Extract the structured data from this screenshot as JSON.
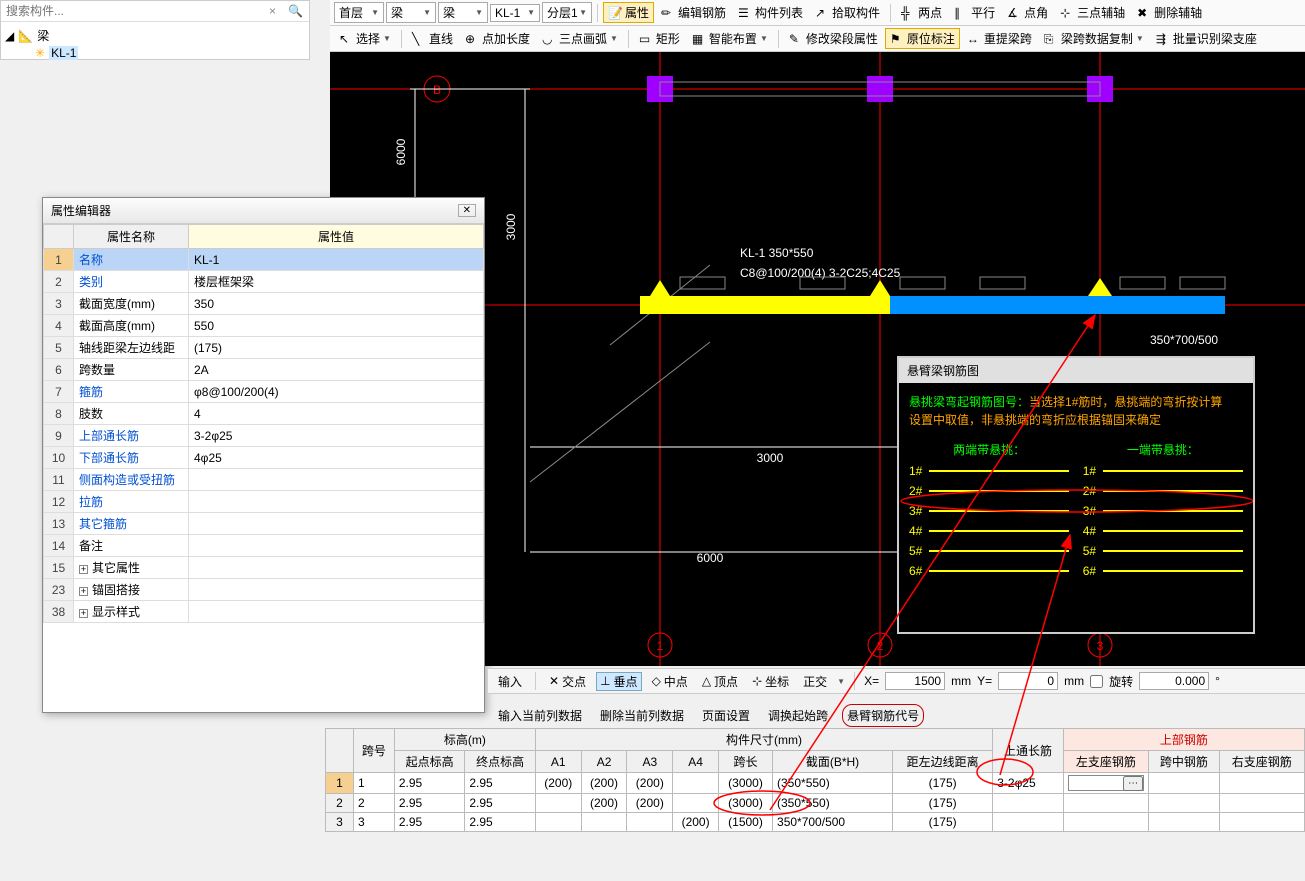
{
  "search": {
    "placeholder": "搜索构件..."
  },
  "tree": {
    "root": "梁",
    "leaf": "KL-1"
  },
  "topDropdowns": {
    "d1": "首层",
    "d2": "梁",
    "d3": "梁",
    "d4": "KL-1",
    "d5": "分层1"
  },
  "toolbar1": {
    "attr": "属性",
    "editRebar": "编辑钢筋",
    "compList": "构件列表",
    "pick": "拾取构件",
    "grid": "两点",
    "parallel": "平行",
    "pointAngle": "点角",
    "threePoint": "三点辅轴",
    "delAux": "删除辅轴"
  },
  "toolbar2": {
    "select": "选择",
    "line": "直线",
    "addLen": "点加长度",
    "threeArc": "三点画弧",
    "rect": "矩形",
    "smart": "智能布置",
    "editSeg": "修改梁段属性",
    "inplace": "原位标注",
    "respan": "重提梁跨",
    "copySpan": "梁跨数据复制",
    "batch": "批量识别梁支座"
  },
  "propEditor": {
    "title": "属性编辑器",
    "headers": {
      "name": "属性名称",
      "value": "属性值"
    },
    "rows": [
      {
        "n": "1",
        "k": "名称",
        "v": "KL-1",
        "blue": true,
        "sel": true
      },
      {
        "n": "2",
        "k": "类别",
        "v": "楼层框架梁",
        "blue": true
      },
      {
        "n": "3",
        "k": "截面宽度(mm)",
        "v": "350"
      },
      {
        "n": "4",
        "k": "截面高度(mm)",
        "v": "550"
      },
      {
        "n": "5",
        "k": "轴线距梁左边线距",
        "v": "(175)"
      },
      {
        "n": "6",
        "k": "跨数量",
        "v": "2A"
      },
      {
        "n": "7",
        "k": "箍筋",
        "v": "φ8@100/200(4)",
        "blue": true
      },
      {
        "n": "8",
        "k": "肢数",
        "v": "4"
      },
      {
        "n": "9",
        "k": "上部通长筋",
        "v": "3-2φ25",
        "blue": true
      },
      {
        "n": "10",
        "k": "下部通长筋",
        "v": "4φ25",
        "blue": true
      },
      {
        "n": "11",
        "k": "侧面构造或受扭筋",
        "v": "",
        "blue": true
      },
      {
        "n": "12",
        "k": "拉筋",
        "v": "",
        "blue": true
      },
      {
        "n": "13",
        "k": "其它箍筋",
        "v": "",
        "blue": true
      },
      {
        "n": "14",
        "k": "备注",
        "v": ""
      },
      {
        "n": "15",
        "k": "其它属性",
        "v": "",
        "exp": true
      },
      {
        "n": "23",
        "k": "锚固搭接",
        "v": "",
        "exp": true
      },
      {
        "n": "38",
        "k": "显示样式",
        "v": "",
        "exp": true
      }
    ]
  },
  "canvas": {
    "axisB": "B",
    "dims": {
      "v1": "6000",
      "v2": "3000",
      "h1": "3000",
      "h2": "6000"
    },
    "beamLabel1": "KL-1 350*550",
    "beamLabel2": "C8@100/200(4) 3-2C25;4C25",
    "annot350": "350*700/500",
    "gridNums": [
      "1",
      "2",
      "3"
    ],
    "colors": {
      "bg": "#000000",
      "gridRed": "#ff0000",
      "purple": "#a000ff",
      "yellow": "#ffff00",
      "blue": "#0090ff",
      "gray": "#888888",
      "white": "#ffffff"
    }
  },
  "rebarPopup": {
    "title": "悬臂梁钢筋图",
    "note1a": "悬挑梁弯起钢筋图号：",
    "note1b": "当选择1#筋时，悬挑端的弯折按计算",
    "note2": "设置中取值，非悬挑端的弯折应根据锚固来确定",
    "colLeft": "两端带悬挑：",
    "colRight": "一端带悬挑：",
    "labels": [
      "1#",
      "2#",
      "3#",
      "4#",
      "5#",
      "6#"
    ]
  },
  "statusBar": {
    "importBtn": "输入",
    "cross": "交点",
    "perp": "垂点",
    "mid": "中点",
    "apex": "顶点",
    "coord": "坐标",
    "ortho": "正交",
    "x": "X=",
    "xval": "1500",
    "mm1": "mm",
    "y": "Y=",
    "yval": "0",
    "mm2": "mm",
    "rotate": "旋转",
    "rotval": "0.000",
    "deg": "°"
  },
  "btnRow": {
    "b1": "输入当前列数据",
    "b2": "删除当前列数据",
    "b3": "页面设置",
    "b4": "调换起始跨",
    "b5": "悬臂钢筋代号"
  },
  "bottomGrid": {
    "groups": {
      "span": "跨号",
      "elev": "标高(m)",
      "size": "构件尺寸(mm)",
      "topLong": "上通长筋",
      "topRebar": "上部钢筋"
    },
    "cols": {
      "startElev": "起点标高",
      "endElev": "终点标高",
      "A1": "A1",
      "A2": "A2",
      "A3": "A3",
      "A4": "A4",
      "span": "跨长",
      "section": "截面(B*H)",
      "dist": "距左边线距离",
      "leftSupp": "左支座钢筋",
      "midSpan": "跨中钢筋",
      "rightSupp": "右支座钢筋"
    },
    "rows": [
      {
        "rn": "1",
        "span": "1",
        "se": "2.95",
        "ee": "2.95",
        "A1": "(200)",
        "A2": "(200)",
        "A3": "(200)",
        "A4": "",
        "spanL": "(3000)",
        "sec": "(350*550)",
        "dist": "(175)",
        "top": "3-2φ25"
      },
      {
        "rn": "2",
        "span": "2",
        "se": "2.95",
        "ee": "2.95",
        "A1": "",
        "A2": "(200)",
        "A3": "(200)",
        "A4": "",
        "spanL": "(3000)",
        "sec": "(350*550)",
        "dist": "(175)",
        "top": ""
      },
      {
        "rn": "3",
        "span": "3",
        "se": "2.95",
        "ee": "2.95",
        "A1": "",
        "A2": "",
        "A3": "",
        "A4": "(200)",
        "spanL": "(1500)",
        "sec": "350*700/500",
        "dist": "(175)",
        "top": ""
      }
    ]
  }
}
